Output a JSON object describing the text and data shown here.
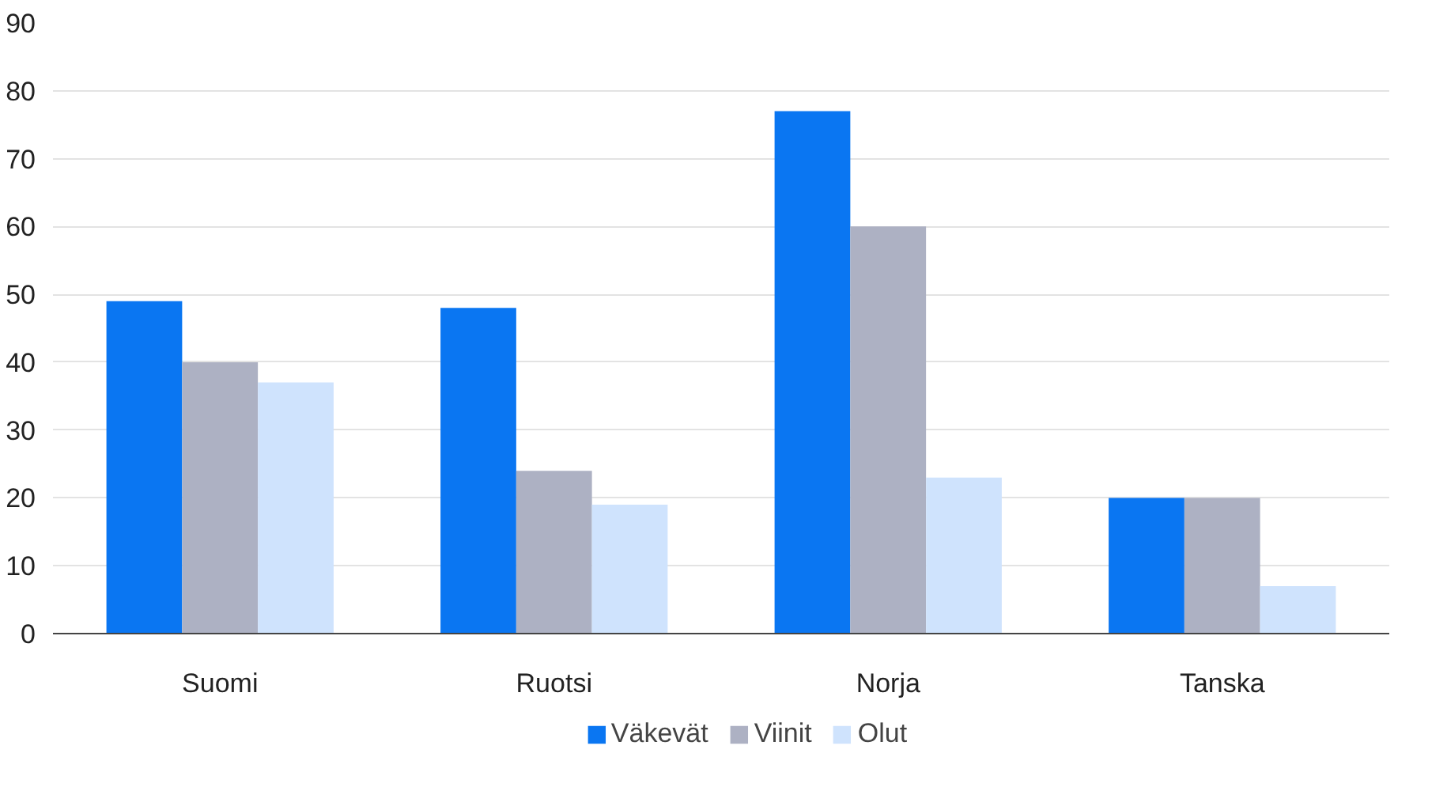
{
  "chart_data": {
    "type": "bar",
    "categories": [
      "Suomi",
      "Ruotsi",
      "Norja",
      "Tanska"
    ],
    "series": [
      {
        "name": "Väkevät",
        "color": "#0a76f2",
        "values": [
          49,
          48,
          77,
          20
        ]
      },
      {
        "name": "Viinit",
        "color": "#adb1c3",
        "values": [
          40,
          24,
          60,
          20
        ]
      },
      {
        "name": "Olut",
        "color": "#cfe3fd",
        "values": [
          37,
          19,
          23,
          7
        ]
      }
    ],
    "ylim": [
      0,
      90
    ],
    "yticks": [
      0,
      10,
      20,
      30,
      40,
      50,
      60,
      70,
      80,
      90
    ],
    "grid": "y",
    "legend": "bottom"
  }
}
